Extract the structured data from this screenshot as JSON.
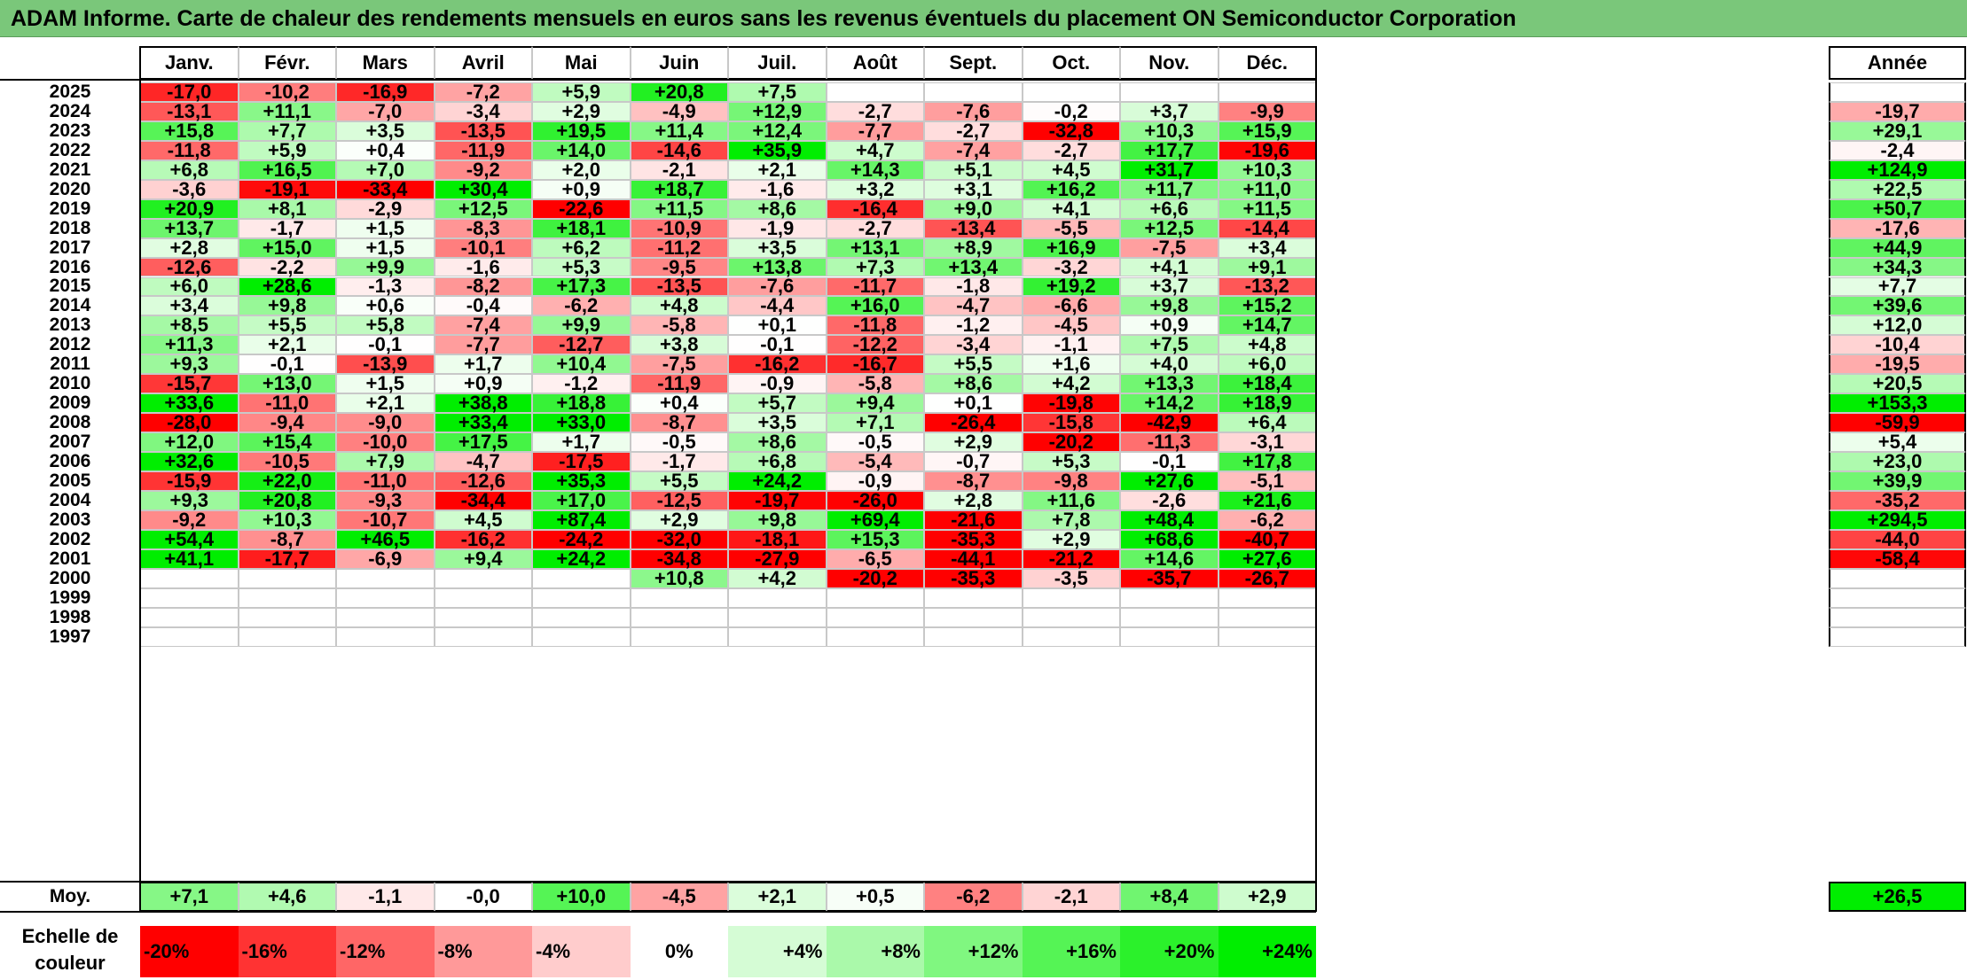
{
  "title": "ADAM Informe. Carte de chaleur des rendements mensuels en euros sans les revenus éventuels du placement ON Semiconductor Corporation",
  "chart_data": {
    "type": "heatmap",
    "title": "ADAM Informe. Carte de chaleur des rendements mensuels en euros sans les revenus éventuels du placement ON Semiconductor Corporation",
    "columns": [
      "Janv.",
      "Févr.",
      "Mars",
      "Avril",
      "Mai",
      "Juin",
      "Juil.",
      "Août",
      "Sept.",
      "Oct.",
      "Nov.",
      "Déc."
    ],
    "year_column": "Année",
    "rows": [
      {
        "year": "2025",
        "values": [
          "-17,0",
          "-10,2",
          "-16,9",
          "-7,2",
          "+5,9",
          "+20,8",
          "+7,5",
          "",
          "",
          "",
          "",
          ""
        ],
        "annual": ""
      },
      {
        "year": "2024",
        "values": [
          "-13,1",
          "+11,1",
          "-7,0",
          "-3,4",
          "+2,9",
          "-4,9",
          "+12,9",
          "-2,7",
          "-7,6",
          "-0,2",
          "+3,7",
          "-9,9"
        ],
        "annual": "-19,7"
      },
      {
        "year": "2023",
        "values": [
          "+15,8",
          "+7,7",
          "+3,5",
          "-13,5",
          "+19,5",
          "+11,4",
          "+12,4",
          "-7,7",
          "-2,7",
          "-32,8",
          "+10,3",
          "+15,9"
        ],
        "annual": "+29,1"
      },
      {
        "year": "2022",
        "values": [
          "-11,8",
          "+5,9",
          "+0,4",
          "-11,9",
          "+14,0",
          "-14,6",
          "+35,9",
          "+4,7",
          "-7,4",
          "-2,7",
          "+17,7",
          "-19,6"
        ],
        "annual": "-2,4"
      },
      {
        "year": "2021",
        "values": [
          "+6,8",
          "+16,5",
          "+7,0",
          "-9,2",
          "+2,0",
          "-2,1",
          "+2,1",
          "+14,3",
          "+5,1",
          "+4,5",
          "+31,7",
          "+10,3"
        ],
        "annual": "+124,9"
      },
      {
        "year": "2020",
        "values": [
          "-3,6",
          "-19,1",
          "-33,4",
          "+30,4",
          "+0,9",
          "+18,7",
          "-1,6",
          "+3,2",
          "+3,1",
          "+16,2",
          "+11,7",
          "+11,0"
        ],
        "annual": "+22,5"
      },
      {
        "year": "2019",
        "values": [
          "+20,9",
          "+8,1",
          "-2,9",
          "+12,5",
          "-22,6",
          "+11,5",
          "+8,6",
          "-16,4",
          "+9,0",
          "+4,1",
          "+6,6",
          "+11,5"
        ],
        "annual": "+50,7"
      },
      {
        "year": "2018",
        "values": [
          "+13,7",
          "-1,7",
          "+1,5",
          "-8,3",
          "+18,1",
          "-10,9",
          "-1,9",
          "-2,7",
          "-13,4",
          "-5,5",
          "+12,5",
          "-14,4"
        ],
        "annual": "-17,6"
      },
      {
        "year": "2017",
        "values": [
          "+2,8",
          "+15,0",
          "+1,5",
          "-10,1",
          "+6,2",
          "-11,2",
          "+3,5",
          "+13,1",
          "+8,9",
          "+16,9",
          "-7,5",
          "+3,4"
        ],
        "annual": "+44,9"
      },
      {
        "year": "2016",
        "values": [
          "-12,6",
          "-2,2",
          "+9,9",
          "-1,6",
          "+5,3",
          "-9,5",
          "+13,8",
          "+7,3",
          "+13,4",
          "-3,2",
          "+4,1",
          "+9,1"
        ],
        "annual": "+34,3"
      },
      {
        "year": "2015",
        "values": [
          "+6,0",
          "+28,6",
          "-1,3",
          "-8,2",
          "+17,3",
          "-13,5",
          "-7,6",
          "-11,7",
          "-1,8",
          "+19,2",
          "+3,7",
          "-13,2"
        ],
        "annual": "+7,7"
      },
      {
        "year": "2014",
        "values": [
          "+3,4",
          "+9,8",
          "+0,6",
          "-0,4",
          "-6,2",
          "+4,8",
          "-4,4",
          "+16,0",
          "-4,7",
          "-6,6",
          "+9,8",
          "+15,2"
        ],
        "annual": "+39,6"
      },
      {
        "year": "2013",
        "values": [
          "+8,5",
          "+5,5",
          "+5,8",
          "-7,4",
          "+9,9",
          "-5,8",
          "+0,1",
          "-11,8",
          "-1,2",
          "-4,5",
          "+0,9",
          "+14,7"
        ],
        "annual": "+12,0"
      },
      {
        "year": "2012",
        "values": [
          "+11,3",
          "+2,1",
          "-0,1",
          "-7,7",
          "-12,7",
          "+3,8",
          "-0,1",
          "-12,2",
          "-3,4",
          "-1,1",
          "+7,5",
          "+4,8"
        ],
        "annual": "-10,4"
      },
      {
        "year": "2011",
        "values": [
          "+9,3",
          "-0,1",
          "-13,9",
          "+1,7",
          "+10,4",
          "-7,5",
          "-16,2",
          "-16,7",
          "+5,5",
          "+1,6",
          "+4,0",
          "+6,0"
        ],
        "annual": "-19,5"
      },
      {
        "year": "2010",
        "values": [
          "-15,7",
          "+13,0",
          "+1,5",
          "+0,9",
          "-1,2",
          "-11,9",
          "-0,9",
          "-5,8",
          "+8,6",
          "+4,2",
          "+13,3",
          "+18,4"
        ],
        "annual": "+20,5"
      },
      {
        "year": "2009",
        "values": [
          "+33,6",
          "-11,0",
          "+2,1",
          "+38,8",
          "+18,8",
          "+0,4",
          "+5,7",
          "+9,4",
          "+0,1",
          "-19,8",
          "+14,2",
          "+18,9"
        ],
        "annual": "+153,3"
      },
      {
        "year": "2008",
        "values": [
          "-28,0",
          "-9,4",
          "-9,0",
          "+33,4",
          "+33,0",
          "-8,7",
          "+3,5",
          "+7,1",
          "-26,4",
          "-15,8",
          "-42,9",
          "+6,4"
        ],
        "annual": "-59,9"
      },
      {
        "year": "2007",
        "values": [
          "+12,0",
          "+15,4",
          "-10,0",
          "+17,5",
          "+1,7",
          "-0,5",
          "+8,6",
          "-0,5",
          "+2,9",
          "-20,2",
          "-11,3",
          "-3,1"
        ],
        "annual": "+5,4"
      },
      {
        "year": "2006",
        "values": [
          "+32,6",
          "-10,5",
          "+7,9",
          "-4,7",
          "-17,5",
          "-1,7",
          "+6,8",
          "-5,4",
          "-0,7",
          "+5,3",
          "-0,1",
          "+17,8"
        ],
        "annual": "+23,0"
      },
      {
        "year": "2005",
        "values": [
          "-15,9",
          "+22,0",
          "-11,0",
          "-12,6",
          "+35,3",
          "+5,5",
          "+24,2",
          "-0,9",
          "-8,7",
          "-9,8",
          "+27,6",
          "-5,1"
        ],
        "annual": "+39,9"
      },
      {
        "year": "2004",
        "values": [
          "+9,3",
          "+20,8",
          "-9,3",
          "-34,4",
          "+17,0",
          "-12,5",
          "-19,7",
          "-26,0",
          "+2,8",
          "+11,6",
          "-2,6",
          "+21,6"
        ],
        "annual": "-35,2"
      },
      {
        "year": "2003",
        "values": [
          "-9,2",
          "+10,3",
          "-10,7",
          "+4,5",
          "+87,4",
          "+2,9",
          "+9,8",
          "+69,4",
          "-21,6",
          "+7,8",
          "+48,4",
          "-6,2"
        ],
        "annual": "+294,5"
      },
      {
        "year": "2002",
        "values": [
          "+54,4",
          "-8,7",
          "+46,5",
          "-16,2",
          "-24,2",
          "-32,0",
          "-18,1",
          "+15,3",
          "-35,3",
          "+2,9",
          "+68,6",
          "-40,7"
        ],
        "annual": "-44,0"
      },
      {
        "year": "2001",
        "values": [
          "+41,1",
          "-17,7",
          "-6,9",
          "+9,4",
          "+24,2",
          "-34,8",
          "-27,9",
          "-6,5",
          "-44,1",
          "-21,2",
          "+14,6",
          "+27,6"
        ],
        "annual": "-58,4"
      },
      {
        "year": "2000",
        "values": [
          "",
          "",
          "",
          "",
          "",
          "+10,8",
          "+4,2",
          "-20,2",
          "-35,3",
          "-3,5",
          "-35,7",
          "-26,7"
        ],
        "annual": ""
      },
      {
        "year": "1999",
        "values": [
          "",
          "",
          "",
          "",
          "",
          "",
          "",
          "",
          "",
          "",
          "",
          ""
        ],
        "annual": ""
      },
      {
        "year": "1998",
        "values": [
          "",
          "",
          "",
          "",
          "",
          "",
          "",
          "",
          "",
          "",
          "",
          ""
        ],
        "annual": ""
      },
      {
        "year": "1997",
        "values": [
          "",
          "",
          "",
          "",
          "",
          "",
          "",
          "",
          "",
          "",
          "",
          ""
        ],
        "annual": ""
      }
    ],
    "average": {
      "label": "Moy.",
      "values": [
        "+7,1",
        "+4,6",
        "-1,1",
        "-0,0",
        "+10,0",
        "-4,5",
        "+2,1",
        "+0,5",
        "-6,2",
        "-2,1",
        "+8,4",
        "+2,9"
      ],
      "annual": "+26,5"
    },
    "scale": {
      "label": "Echelle de couleur",
      "steps": [
        "-20%",
        "-16%",
        "-12%",
        "-8%",
        "-4%",
        "0%",
        "+4%",
        "+8%",
        "+12%",
        "+16%",
        "+20%",
        "+24%"
      ]
    },
    "colors": {
      "negative_max": "#ff0000",
      "neutral": "#ffffff",
      "positive_max": "#00ee00",
      "title_bar": "#7ac77a"
    }
  }
}
